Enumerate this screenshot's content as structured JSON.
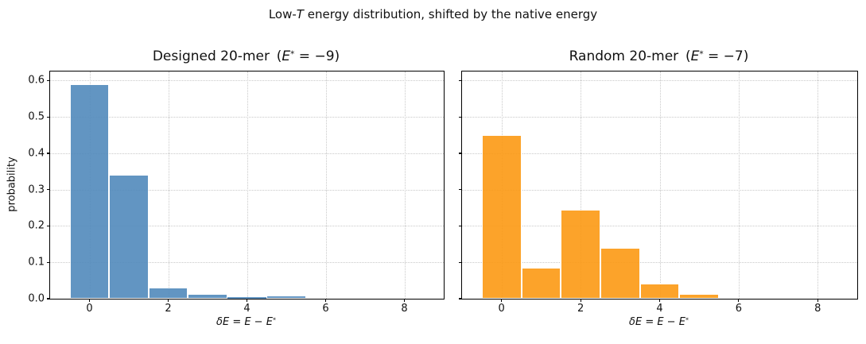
{
  "figure": {
    "title": {
      "pre": "Low-",
      "italic": "T",
      "post": " energy distribution, shifted by the native energy"
    }
  },
  "chart_data": [
    {
      "type": "bar",
      "subtype": "histogram",
      "panel": "left",
      "title": {
        "pre": "Designed 20-mer  (",
        "var": "E",
        "sup": "*",
        "post": " = −9)"
      },
      "ylabel": "probability",
      "xlabel": {
        "main": "δE = E − E",
        "sup": "*"
      },
      "bin_centers": [
        0,
        1,
        2,
        3,
        4,
        5
      ],
      "bin_width": 1.0,
      "values": [
        0.59,
        0.34,
        0.03,
        0.013,
        0.004,
        0.009
      ],
      "bar_color": "#5189bb",
      "bar_alpha": 0.9,
      "bar_edge_color": "#ffffff",
      "xlim": [
        -1,
        9
      ],
      "ylim": [
        0,
        0.625
      ],
      "xticks": [
        0,
        2,
        4,
        6,
        8
      ],
      "yticks": [
        0.0,
        0.1,
        0.2,
        0.3,
        0.4,
        0.5,
        0.6
      ],
      "show_ytick_labels": true,
      "grid": "dotted both axes"
    },
    {
      "type": "bar",
      "subtype": "histogram",
      "panel": "right",
      "title": {
        "pre": "Random 20-mer  (",
        "var": "E",
        "sup": "*",
        "post": " = −7)"
      },
      "ylabel": "",
      "xlabel": {
        "main": "δE = E − E",
        "sup": "*"
      },
      "bin_centers": [
        0,
        1,
        2,
        3,
        4,
        5
      ],
      "bin_width": 1.0,
      "values": [
        0.45,
        0.085,
        0.245,
        0.14,
        0.041,
        0.013
      ],
      "bar_color": "#fc9913",
      "bar_alpha": 0.9,
      "bar_edge_color": "#ffffff",
      "xlim": [
        -1,
        9
      ],
      "ylim": [
        0,
        0.625
      ],
      "xticks": [
        0,
        2,
        4,
        6,
        8
      ],
      "yticks": [
        0.0,
        0.1,
        0.2,
        0.3,
        0.4,
        0.5,
        0.6
      ],
      "show_ytick_labels": false,
      "grid": "dotted both axes"
    }
  ]
}
